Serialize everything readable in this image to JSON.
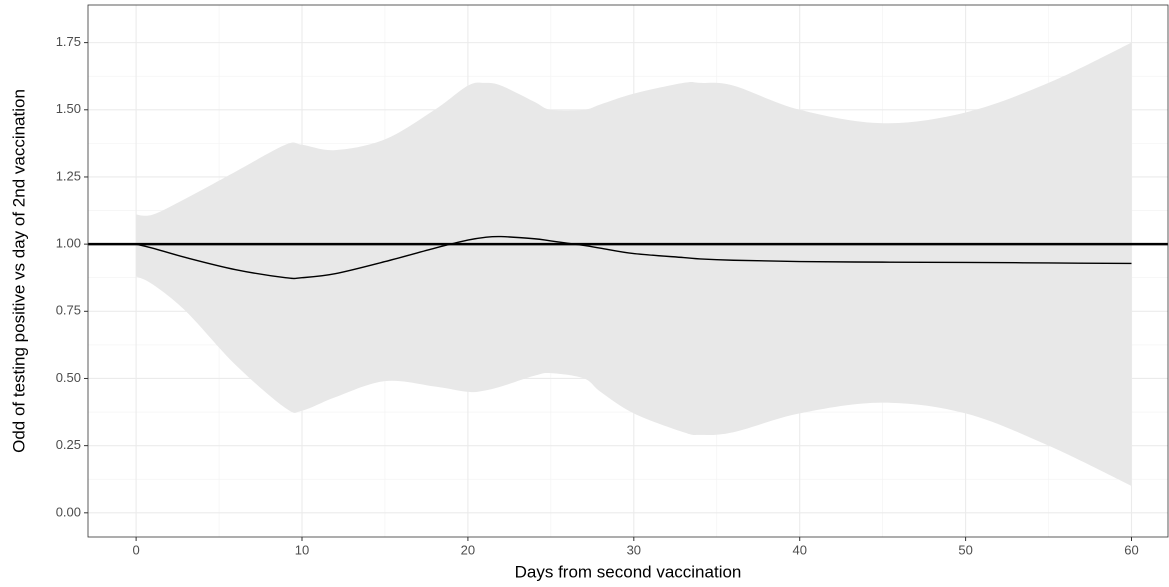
{
  "chart_data": {
    "type": "line",
    "xlabel": "Days from second vaccination",
    "ylabel": "Odd of testing positive vs day of 2nd vaccination",
    "x": [
      0,
      1,
      3,
      6,
      9,
      10,
      12,
      15,
      18,
      20,
      21,
      22,
      24,
      25,
      27,
      28,
      30,
      33,
      34,
      36,
      40,
      45,
      50,
      55,
      60
    ],
    "values": [
      1.0,
      0.985,
      0.95,
      0.905,
      0.875,
      0.875,
      0.89,
      0.935,
      0.985,
      1.015,
      1.025,
      1.028,
      1.02,
      1.012,
      0.995,
      0.985,
      0.965,
      0.95,
      0.945,
      0.94,
      0.935,
      0.933,
      0.932,
      0.93,
      0.928
    ],
    "color": "#000000",
    "band": {
      "color": "#e8e8e8",
      "upper": [
        1.11,
        1.11,
        1.17,
        1.27,
        1.37,
        1.37,
        1.35,
        1.39,
        1.5,
        1.59,
        1.6,
        1.59,
        1.53,
        1.5,
        1.5,
        1.52,
        1.56,
        1.6,
        1.6,
        1.59,
        1.5,
        1.45,
        1.49,
        1.6,
        1.75
      ],
      "lower": [
        0.88,
        0.85,
        0.75,
        0.55,
        0.39,
        0.38,
        0.43,
        0.49,
        0.47,
        0.45,
        0.455,
        0.47,
        0.51,
        0.52,
        0.5,
        0.45,
        0.37,
        0.3,
        0.29,
        0.3,
        0.37,
        0.41,
        0.37,
        0.25,
        0.1
      ]
    },
    "hline": 1,
    "xlim": [
      -2.9,
      62.2
    ],
    "xticks": [
      0,
      10,
      20,
      30,
      40,
      50,
      60
    ],
    "ylim": [
      -0.09,
      1.89
    ],
    "yticks": [
      {
        "value": 0,
        "label": "0.00"
      },
      {
        "value": 0.25,
        "label": "0.25"
      },
      {
        "value": 0.5,
        "label": "0.50"
      },
      {
        "value": 0.75,
        "label": "0.75"
      },
      {
        "value": 1,
        "label": "1.00"
      },
      {
        "value": 1.25,
        "label": "1.25"
      },
      {
        "value": 1.5,
        "label": "1.50"
      },
      {
        "value": 1.75,
        "label": "1.75"
      }
    ],
    "grid": true
  }
}
